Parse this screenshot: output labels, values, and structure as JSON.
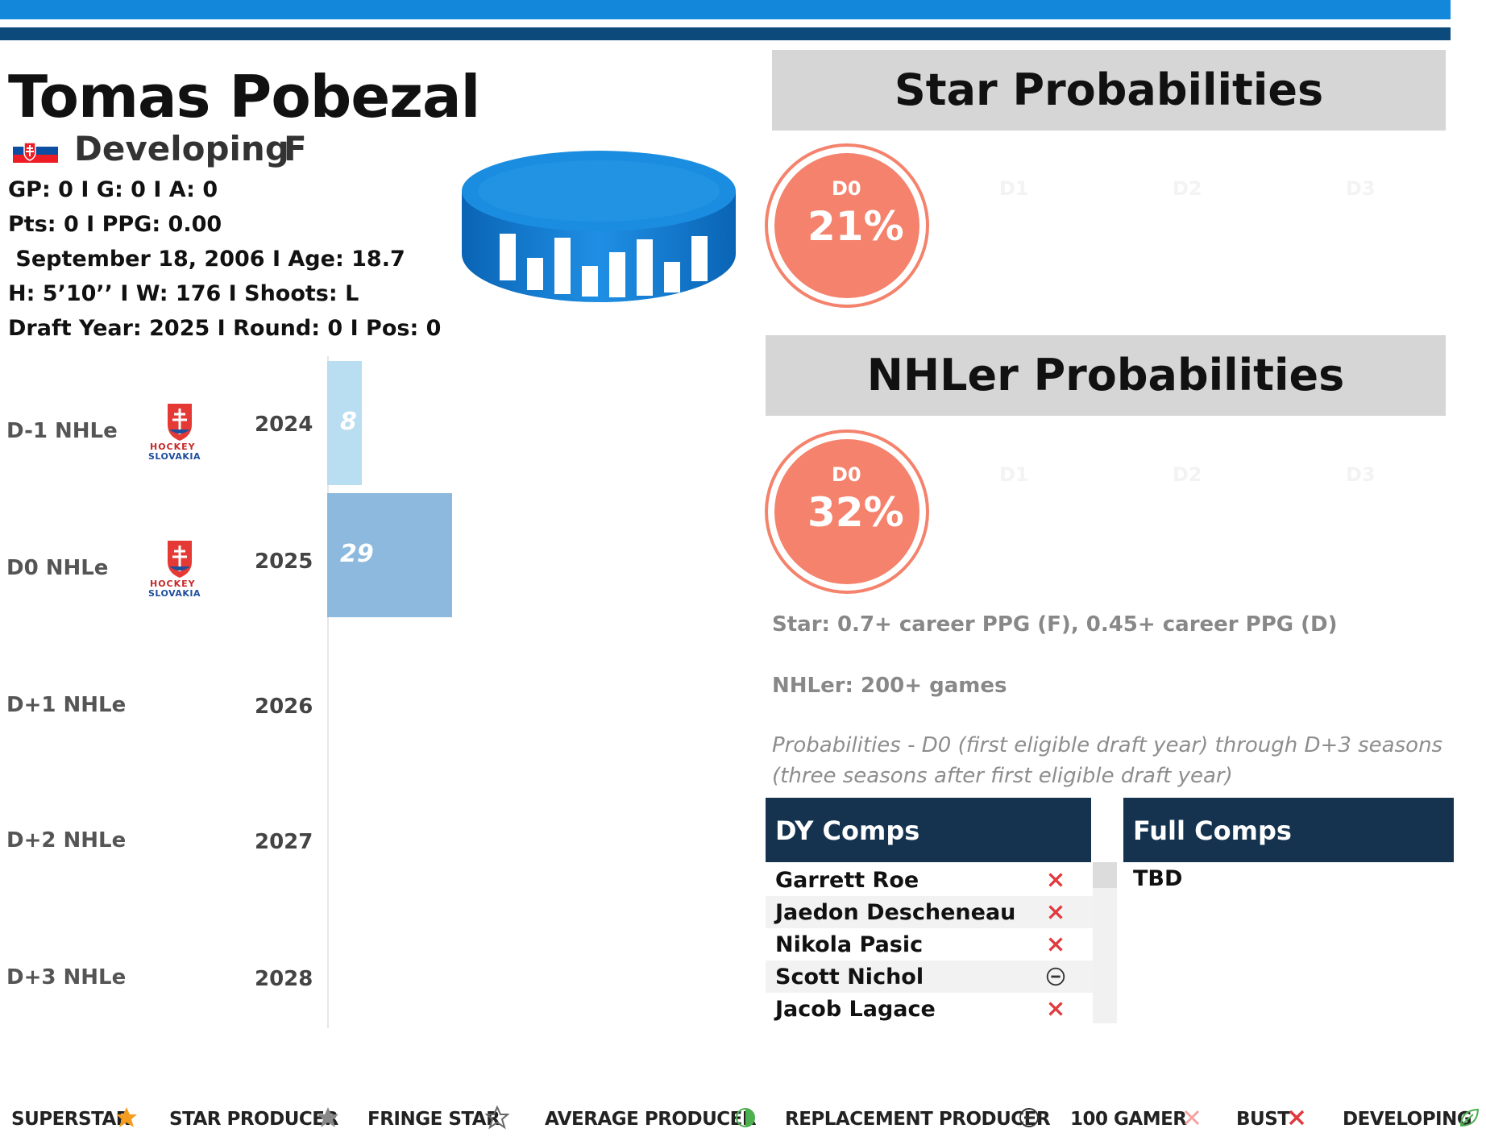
{
  "player": {
    "name": "Tomas Pobezal",
    "status": "Developing",
    "position": "F",
    "line1": "GP: 0 I G: 0 I A: 0",
    "line2": "Pts: 0 I PPG: 0.00",
    "line3": " September 18, 2006 I Age: 18.7",
    "line4": "H: 5’10’’ I W: 176 I Shoots: L",
    "line5": "Draft Year: 2025 I Round: 0 I Pos: 0"
  },
  "logo_text": {
    "line1": "HOCKEY",
    "line2": "SLOVAKIA"
  },
  "nhle_rows": [
    {
      "label": "D-1 NHLe",
      "year": "2024",
      "value": 8,
      "value_text": "8",
      "has_logo": true
    },
    {
      "label": "D0 NHLe",
      "year": "2025",
      "value": 29,
      "value_text": "29",
      "has_logo": true
    },
    {
      "label": "D+1 NHLe",
      "year": "2026",
      "value": null,
      "value_text": "",
      "has_logo": false
    },
    {
      "label": "D+2 NHLe",
      "year": "2027",
      "value": null,
      "value_text": "",
      "has_logo": false
    },
    {
      "label": "D+3 NHLe",
      "year": "2028",
      "value": null,
      "value_text": "",
      "has_logo": false
    }
  ],
  "star_prob": {
    "title": "Star Probabilities",
    "active_label": "D0",
    "active_value": "21%",
    "other_labels": [
      "D1",
      "D2",
      "D3"
    ]
  },
  "nhler_prob": {
    "title": "NHLer Probabilities",
    "active_label": "D0",
    "active_value": "32%",
    "other_labels": [
      "D1",
      "D2",
      "D3"
    ]
  },
  "notes": {
    "star_def": "Star: 0.7+ career PPG (F), 0.45+ career PPG (D)",
    "nhler_def": "NHLer: 200+ games",
    "prob_line1": "Probabilities - D0 (first eligible draft year) through D+3 seasons",
    "prob_line2": "(three seasons after first eligible draft year)"
  },
  "dy_comps": {
    "title": "DY Comps",
    "rows": [
      {
        "name": "Garrett Roe",
        "outcome": "bust-icon"
      },
      {
        "name": "Jaedon Descheneau",
        "outcome": "bust-icon"
      },
      {
        "name": "Nikola Pasic",
        "outcome": "bust-icon"
      },
      {
        "name": "Scott Nichol",
        "outcome": "replacement-producer-icon"
      },
      {
        "name": "Jacob Lagace",
        "outcome": "bust-icon"
      }
    ]
  },
  "full_comps": {
    "title": "Full Comps",
    "value": "TBD"
  },
  "legend": [
    {
      "label": "SUPERSTAR",
      "icon": "superstar-icon"
    },
    {
      "label": "STAR PRODUCER",
      "icon": "star-producer-icon"
    },
    {
      "label": "FRINGE STAR",
      "icon": "fringe-star-icon"
    },
    {
      "label": "AVERAGE PRODUCER",
      "icon": "average-producer-icon"
    },
    {
      "label": "REPLACEMENT PRODUCER",
      "icon": "replacement-producer-icon"
    },
    {
      "label": "100 GAMER",
      "icon": "100-gamer-icon"
    },
    {
      "label": "BUST",
      "icon": "bust-icon"
    },
    {
      "label": "DEVELOPING",
      "icon": "developing-icon"
    }
  ],
  "colors": {
    "bar_light": "#b9ddf1",
    "bar_mid": "#8cb9dd",
    "circle": "#f4826c",
    "bust": "#e0393e",
    "superstar": "#f39c1f",
    "header_dark": "#15334f"
  }
}
